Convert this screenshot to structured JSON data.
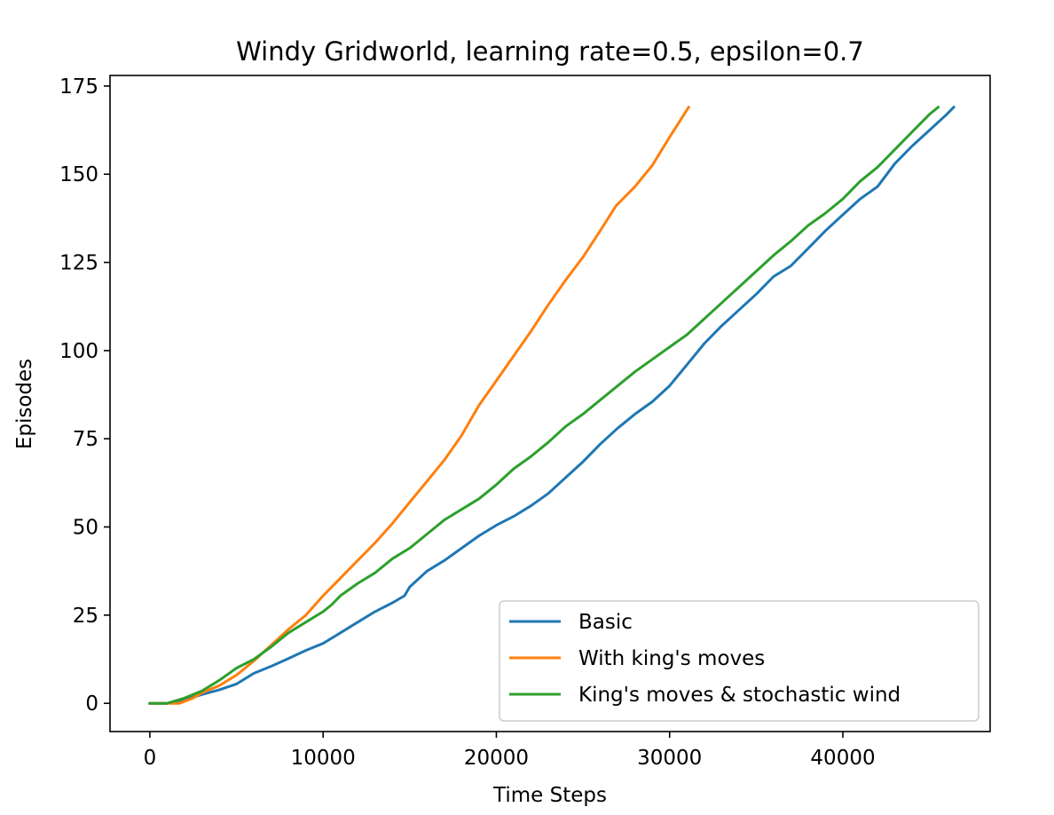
{
  "chart_data": {
    "type": "line",
    "title": "Windy Gridworld, learning rate=0.5, epsilon=0.7",
    "xlabel": "Time Steps",
    "ylabel": "Episodes",
    "xlim": [
      -2300,
      48500
    ],
    "ylim": [
      -8,
      178
    ],
    "xticks": [
      0,
      10000,
      20000,
      30000,
      40000
    ],
    "xtick_labels": [
      "0",
      "10000",
      "20000",
      "30000",
      "40000"
    ],
    "yticks": [
      0,
      25,
      50,
      75,
      100,
      125,
      150,
      175
    ],
    "ytick_labels": [
      "0",
      "25",
      "50",
      "75",
      "100",
      "125",
      "150",
      "175"
    ],
    "grid": false,
    "legend_position": "lower right",
    "series": [
      {
        "name": "Basic",
        "color": "#1f77b4",
        "x": [
          0,
          1000,
          2000,
          3000,
          4000,
          5000,
          6000,
          7000,
          8000,
          9000,
          10000,
          11000,
          12000,
          13000,
          14000,
          14700,
          15000,
          16000,
          17000,
          18000,
          19000,
          20000,
          21000,
          22000,
          23000,
          24000,
          25000,
          26000,
          27000,
          28000,
          29000,
          30000,
          31000,
          32000,
          33000,
          34000,
          35000,
          36000,
          37000,
          38000,
          39000,
          40000,
          41000,
          42000,
          43000,
          44000,
          45000,
          46000,
          46400
        ],
        "y": [
          0,
          0,
          1,
          2.5,
          3.8,
          5.5,
          8.5,
          10.5,
          12.7,
          15,
          17,
          20,
          23,
          26,
          28.5,
          30.5,
          33,
          37.5,
          40.5,
          44,
          47.5,
          50.5,
          53,
          56,
          59.5,
          64,
          68.5,
          73.5,
          78,
          82,
          85.5,
          90,
          96,
          102,
          107,
          111.5,
          116,
          121,
          124,
          129,
          134,
          138.5,
          143,
          146.5,
          153,
          158,
          162.5,
          167,
          169
        ]
      },
      {
        "name": "With king's moves",
        "color": "#ff7f0e",
        "x": [
          0,
          1000,
          1700,
          2500,
          3000,
          4000,
          5000,
          6000,
          7000,
          8000,
          9000,
          10000,
          11000,
          12000,
          13000,
          14000,
          15000,
          16000,
          17000,
          18000,
          19000,
          20000,
          21000,
          22000,
          23000,
          24000,
          25000,
          26000,
          26900,
          28000,
          29000,
          30000,
          31100
        ],
        "y": [
          0,
          0,
          0,
          1.5,
          3,
          5,
          8,
          12,
          16.5,
          21,
          25,
          30.5,
          35.5,
          40.5,
          45.5,
          51,
          57,
          63,
          69,
          76,
          84.5,
          91.5,
          98.5,
          105.5,
          113,
          120,
          126.5,
          134,
          141,
          146.5,
          152.5,
          160.5,
          169
        ]
      },
      {
        "name": "King's moves & stochastic wind",
        "color": "#2ca02c",
        "x": [
          0,
          1000,
          2000,
          3000,
          4000,
          5000,
          6000,
          7000,
          8000,
          9000,
          10000,
          10500,
          11000,
          12000,
          13000,
          14000,
          15000,
          16000,
          17000,
          18000,
          19000,
          20000,
          21000,
          22000,
          23000,
          24000,
          25000,
          26000,
          27000,
          28000,
          29000,
          30000,
          31000,
          32000,
          33000,
          34000,
          35000,
          36000,
          37000,
          38000,
          39000,
          40000,
          41000,
          42000,
          43000,
          44000,
          45000,
          45500
        ],
        "y": [
          0,
          0,
          1.5,
          3.5,
          6.5,
          10,
          12.5,
          16,
          20,
          23,
          26,
          28,
          30.5,
          34,
          37,
          41,
          44,
          48,
          52,
          55,
          58,
          62,
          66.5,
          70,
          74,
          78.5,
          82,
          86,
          90,
          94,
          97.5,
          101,
          104.5,
          109,
          113.5,
          118,
          122.5,
          127,
          131,
          135.5,
          139,
          143,
          148,
          152,
          157,
          162,
          167,
          169
        ]
      }
    ]
  }
}
